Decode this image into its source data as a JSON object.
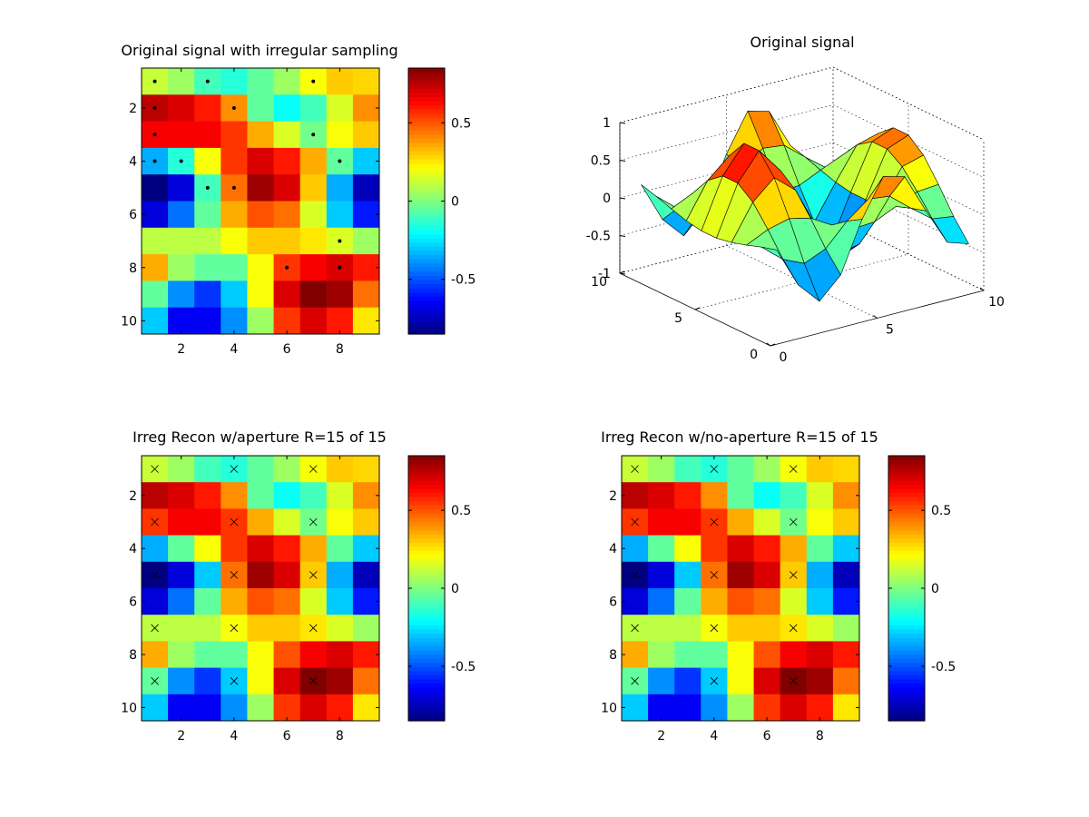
{
  "figure": {
    "background": "#ffffff",
    "colormap": "jet"
  },
  "chart_data": [
    {
      "type": "heatmap",
      "title": "Original signal with irregular sampling",
      "rows": 10,
      "cols": 9,
      "xticks": [
        2,
        4,
        6,
        8
      ],
      "yticks": [
        2,
        4,
        6,
        8,
        10
      ],
      "clim": [
        -0.85,
        0.85
      ],
      "colorbar_ticks": [
        0.5,
        0,
        -0.5
      ],
      "values": [
        [
          0.12,
          0.05,
          -0.1,
          -0.15,
          -0.05,
          0.05,
          0.2,
          0.3,
          0.28
        ],
        [
          0.75,
          0.7,
          0.6,
          0.4,
          -0.05,
          -0.2,
          -0.1,
          0.15,
          0.4
        ],
        [
          0.65,
          0.65,
          0.65,
          0.55,
          0.35,
          0.15,
          -0.02,
          0.2,
          0.3
        ],
        [
          -0.35,
          -0.15,
          0.2,
          0.55,
          0.7,
          0.6,
          0.35,
          -0.05,
          -0.3
        ],
        [
          -0.85,
          -0.7,
          -0.1,
          0.45,
          0.8,
          0.7,
          0.3,
          -0.35,
          -0.75
        ],
        [
          -0.7,
          -0.45,
          -0.05,
          0.35,
          0.5,
          0.45,
          0.15,
          -0.3,
          -0.6
        ],
        [
          0.1,
          0.1,
          0.1,
          0.2,
          0.3,
          0.3,
          0.25,
          0.15,
          0.05
        ],
        [
          0.35,
          0.05,
          -0.05,
          -0.05,
          0.2,
          0.55,
          0.65,
          0.7,
          0.6
        ],
        [
          -0.05,
          -0.4,
          -0.55,
          -0.3,
          0.2,
          0.7,
          0.85,
          0.8,
          0.45
        ],
        [
          -0.3,
          -0.65,
          -0.65,
          -0.4,
          0.05,
          0.55,
          0.7,
          0.6,
          0.25
        ]
      ],
      "markers": {
        "style": "dot",
        "points": [
          [
            1,
            1
          ],
          [
            3,
            1
          ],
          [
            7,
            1
          ],
          [
            1,
            2
          ],
          [
            4,
            2
          ],
          [
            1,
            3
          ],
          [
            7,
            3
          ],
          [
            1,
            4
          ],
          [
            2,
            4
          ],
          [
            8,
            4
          ],
          [
            3,
            5
          ],
          [
            4,
            5
          ],
          [
            8,
            7
          ],
          [
            6,
            8
          ],
          [
            8,
            8
          ]
        ]
      }
    },
    {
      "type": "surface3d",
      "title": "Original signal",
      "zticks": [
        1,
        0.5,
        0,
        -0.5,
        -1
      ],
      "yticks_depth": [
        10,
        5,
        0
      ],
      "xticks_front": [
        0,
        5,
        10
      ],
      "zlim": [
        -1,
        1
      ]
    },
    {
      "type": "heatmap",
      "title": "Irreg Recon w/aperture R=15 of 15",
      "rows": 10,
      "cols": 9,
      "xticks": [
        2,
        4,
        6,
        8
      ],
      "yticks": [
        2,
        4,
        6,
        8,
        10
      ],
      "clim": [
        -0.85,
        0.85
      ],
      "colorbar_ticks": [
        0.5,
        0,
        -0.5
      ],
      "values": [
        [
          0.12,
          0.05,
          -0.1,
          -0.15,
          -0.05,
          0.05,
          0.2,
          0.3,
          0.28
        ],
        [
          0.75,
          0.7,
          0.6,
          0.4,
          -0.05,
          -0.2,
          -0.1,
          0.15,
          0.4
        ],
        [
          0.55,
          0.65,
          0.65,
          0.55,
          0.35,
          0.15,
          -0.02,
          0.2,
          0.3
        ],
        [
          -0.35,
          -0.05,
          0.2,
          0.55,
          0.7,
          0.6,
          0.35,
          -0.05,
          -0.3
        ],
        [
          -0.85,
          -0.7,
          -0.3,
          0.45,
          0.8,
          0.7,
          0.3,
          -0.35,
          -0.75
        ],
        [
          -0.7,
          -0.45,
          -0.05,
          0.35,
          0.5,
          0.45,
          0.15,
          -0.3,
          -0.6
        ],
        [
          0.1,
          0.1,
          0.1,
          0.2,
          0.3,
          0.3,
          0.25,
          0.15,
          0.05
        ],
        [
          0.35,
          0.05,
          -0.05,
          -0.05,
          0.2,
          0.5,
          0.65,
          0.7,
          0.6
        ],
        [
          -0.05,
          -0.4,
          -0.55,
          -0.3,
          0.2,
          0.7,
          0.85,
          0.8,
          0.45
        ],
        [
          -0.3,
          -0.65,
          -0.65,
          -0.4,
          0.05,
          0.55,
          0.7,
          0.6,
          0.25
        ]
      ],
      "markers": {
        "style": "x",
        "points": [
          [
            1,
            1
          ],
          [
            4,
            1
          ],
          [
            7,
            1
          ],
          [
            1,
            3
          ],
          [
            4,
            3
          ],
          [
            7,
            3
          ],
          [
            1,
            5
          ],
          [
            4,
            5
          ],
          [
            7,
            5
          ],
          [
            1,
            7
          ],
          [
            4,
            7
          ],
          [
            7,
            7
          ],
          [
            1,
            9
          ],
          [
            4,
            9
          ],
          [
            7,
            9
          ]
        ]
      }
    },
    {
      "type": "heatmap",
      "title": "Irreg Recon w/no-aperture R=15 of 15",
      "rows": 10,
      "cols": 9,
      "xticks": [
        2,
        4,
        6,
        8
      ],
      "yticks": [
        2,
        4,
        6,
        8,
        10
      ],
      "clim": [
        -0.85,
        0.85
      ],
      "colorbar_ticks": [
        0.5,
        0,
        -0.5
      ],
      "values": [
        [
          0.12,
          0.05,
          -0.1,
          -0.15,
          -0.05,
          0.05,
          0.2,
          0.3,
          0.28
        ],
        [
          0.75,
          0.7,
          0.6,
          0.4,
          -0.05,
          -0.2,
          -0.1,
          0.15,
          0.4
        ],
        [
          0.55,
          0.65,
          0.65,
          0.55,
          0.35,
          0.15,
          -0.02,
          0.2,
          0.3
        ],
        [
          -0.35,
          -0.05,
          0.2,
          0.55,
          0.7,
          0.6,
          0.35,
          -0.05,
          -0.3
        ],
        [
          -0.85,
          -0.7,
          -0.3,
          0.45,
          0.8,
          0.7,
          0.3,
          -0.35,
          -0.75
        ],
        [
          -0.7,
          -0.45,
          -0.05,
          0.35,
          0.5,
          0.45,
          0.15,
          -0.3,
          -0.6
        ],
        [
          0.1,
          0.1,
          0.1,
          0.2,
          0.3,
          0.3,
          0.25,
          0.15,
          0.05
        ],
        [
          0.35,
          0.05,
          -0.05,
          -0.05,
          0.2,
          0.5,
          0.65,
          0.7,
          0.6
        ],
        [
          -0.05,
          -0.4,
          -0.55,
          -0.3,
          0.2,
          0.7,
          0.85,
          0.8,
          0.45
        ],
        [
          -0.3,
          -0.65,
          -0.65,
          -0.4,
          0.05,
          0.55,
          0.7,
          0.6,
          0.25
        ]
      ],
      "markers": {
        "style": "x",
        "points": [
          [
            1,
            1
          ],
          [
            4,
            1
          ],
          [
            7,
            1
          ],
          [
            1,
            3
          ],
          [
            4,
            3
          ],
          [
            7,
            3
          ],
          [
            1,
            5
          ],
          [
            4,
            5
          ],
          [
            7,
            5
          ],
          [
            1,
            7
          ],
          [
            4,
            7
          ],
          [
            7,
            7
          ],
          [
            1,
            9
          ],
          [
            4,
            9
          ],
          [
            7,
            9
          ]
        ]
      }
    }
  ]
}
